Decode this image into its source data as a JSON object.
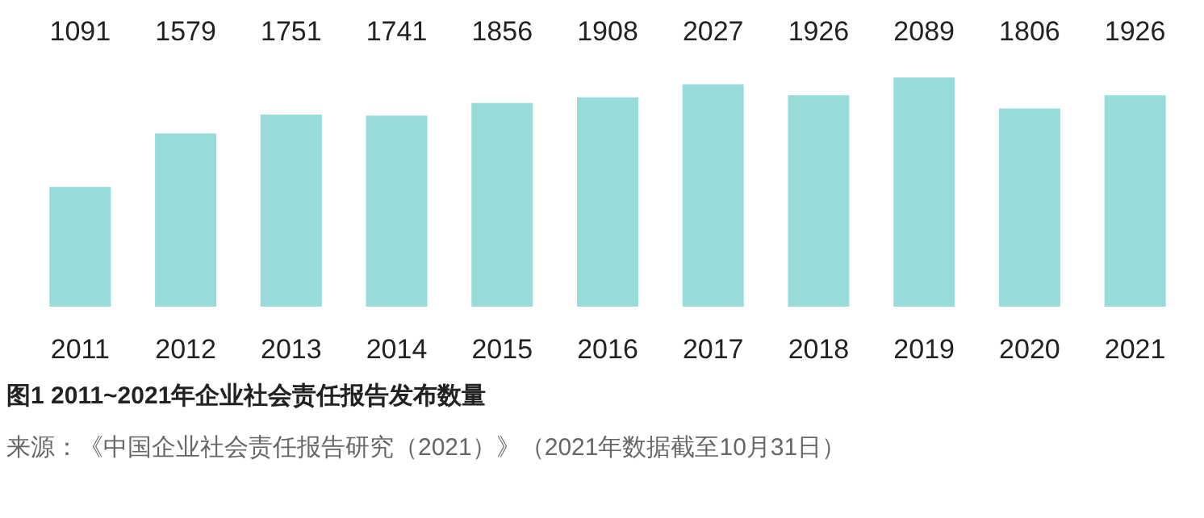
{
  "chart_data": {
    "type": "bar",
    "title": "图1 2011~2021年企业社会责任报告发布数量",
    "categories": [
      "2011",
      "2012",
      "2013",
      "2014",
      "2015",
      "2016",
      "2017",
      "2018",
      "2019",
      "2020",
      "2021"
    ],
    "values": [
      1091,
      1579,
      1751,
      1741,
      1856,
      1908,
      2027,
      1926,
      2089,
      1806,
      1926
    ],
    "color": "#97dcd9",
    "data_labels": true,
    "annotations": [
      "来源：《中国企业社会责任报告研究（2021）》（2021年数据截至10月31日）"
    ]
  }
}
